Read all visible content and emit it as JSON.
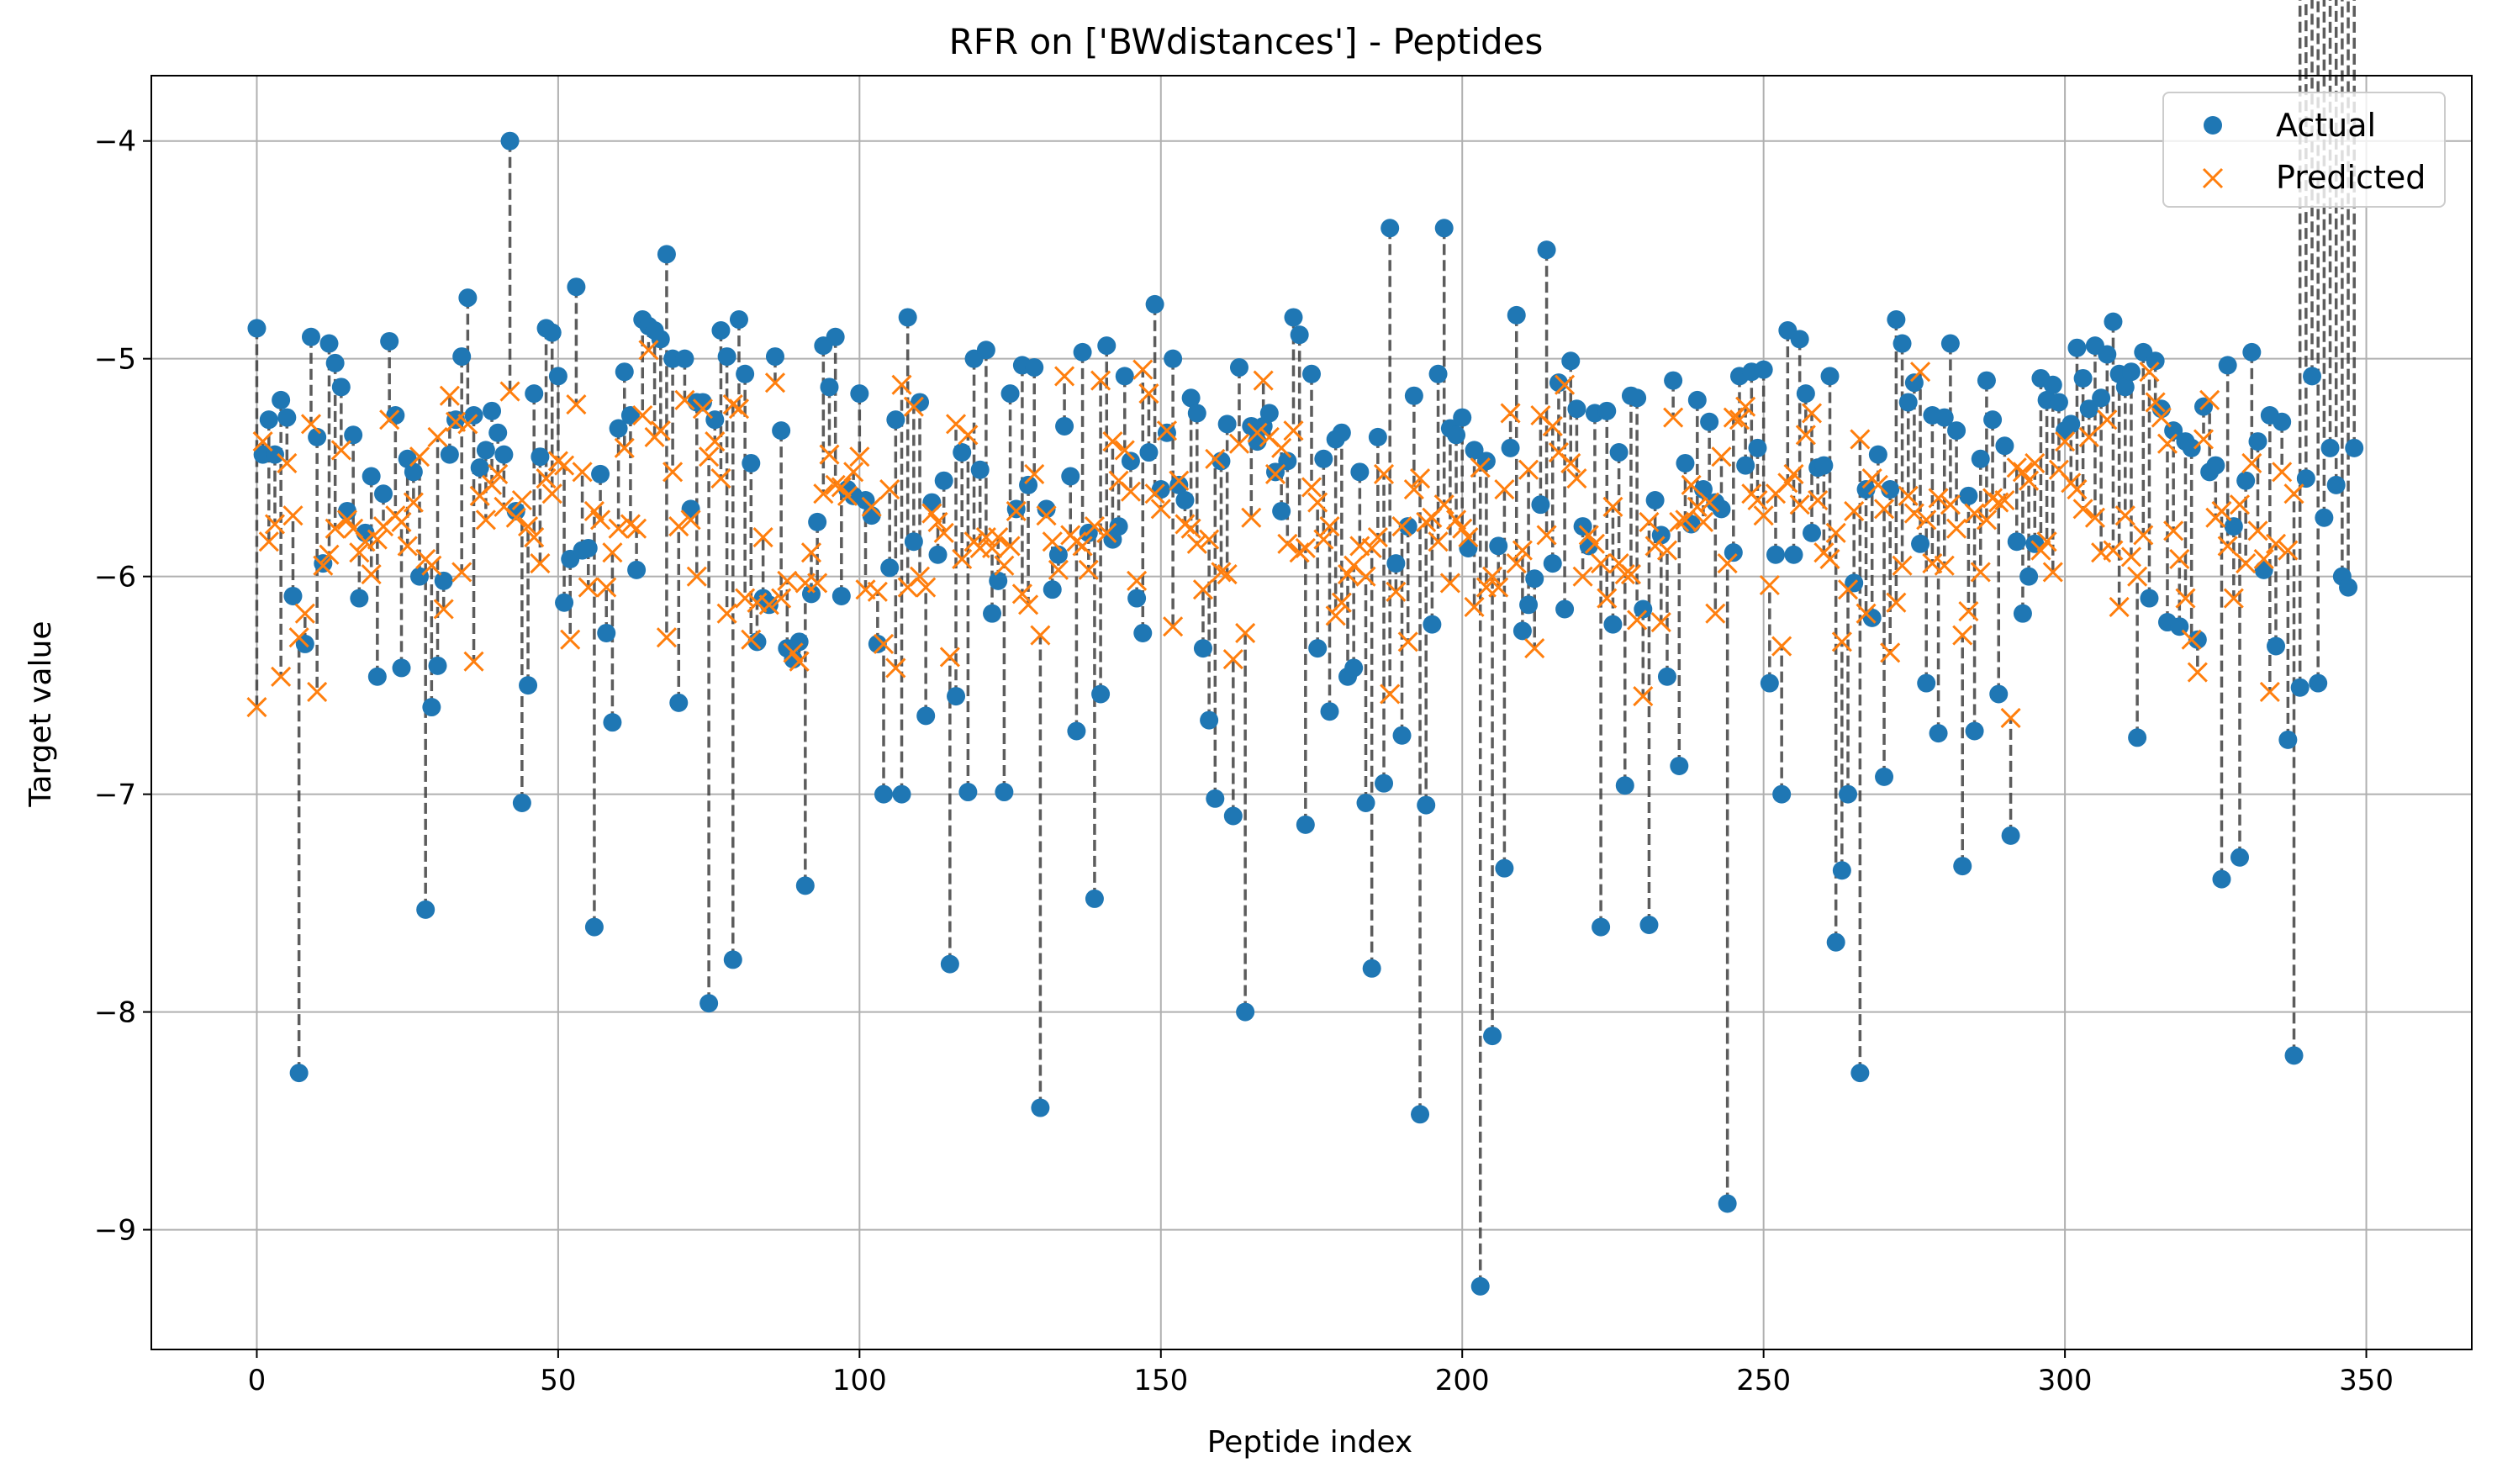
{
  "chart_data": {
    "type": "scatter",
    "title": "RFR on ['BWdistances'] - Peptides",
    "xlabel": "Peptide index",
    "ylabel": "Target value",
    "xlim": [
      -17.5,
      367.5
    ],
    "ylim": [
      -9.55,
      -3.7
    ],
    "xticks": [
      0,
      50,
      100,
      150,
      200,
      250,
      300,
      350
    ],
    "yticks": [
      -9,
      -8,
      -7,
      -6,
      -5,
      -4
    ],
    "grid": true,
    "legend_position": "top-right",
    "connectors": "dashed vertical lines joining actual and predicted",
    "colors": {
      "actual": "#1f77b4",
      "predicted": "#ff7f0e",
      "connector": "#404040",
      "grid": "#b0b0b0"
    },
    "series": [
      {
        "name": "Actual",
        "marker": "circle",
        "values": [
          -4.86,
          -5.44,
          -5.28,
          -5.44,
          -5.19,
          -5.27,
          -6.09,
          -8.28,
          -6.31,
          -4.9,
          -5.36,
          -5.94,
          -4.93,
          -5.02,
          -5.13,
          -5.7,
          -5.35,
          -6.1,
          -5.8,
          -5.54,
          -6.46,
          -5.62,
          -4.92,
          -5.26,
          -6.42,
          -5.46,
          -5.52,
          -6.0,
          -7.53,
          -6.6,
          -6.41,
          -6.02,
          -5.44,
          -5.28,
          -4.99,
          -4.72,
          -5.26,
          -5.5,
          -5.42,
          -5.24,
          -5.34,
          -5.44,
          -4.0,
          -5.7,
          -7.04,
          -6.5,
          -5.16,
          -5.45,
          -4.86,
          -4.88,
          -5.08,
          -6.12,
          -5.92,
          -4.67,
          -5.88,
          -5.87,
          -7.61,
          -5.53,
          -6.26,
          -6.67,
          -5.32,
          -5.06,
          -5.26,
          -5.97,
          -4.82,
          -4.85,
          -4.87,
          -4.91,
          -4.52,
          -5.0,
          -6.58,
          -5.0,
          -5.69,
          -5.2,
          -5.2,
          -7.96,
          -5.28,
          -4.87,
          -4.99,
          -7.76,
          -4.82,
          -5.07,
          -5.48,
          -6.3,
          -6.1,
          -6.13,
          -4.99,
          -5.33,
          -6.33,
          -6.38,
          -6.3,
          -7.42,
          -6.08,
          -5.75,
          -4.94,
          -5.13,
          -4.9,
          -6.09,
          -5.6,
          -5.63,
          -5.16,
          -5.65,
          -5.72,
          -6.31,
          -7.0,
          -5.96,
          -5.28,
          -7.0,
          -4.81,
          -5.84,
          -5.2,
          -6.64,
          -5.66,
          -5.9,
          -5.56,
          -7.78,
          -6.55,
          -5.43,
          -6.99,
          -5.0,
          -5.51,
          -4.96,
          -6.17,
          -6.02,
          -6.99,
          -5.16,
          -5.69,
          -5.03,
          -5.58,
          -5.04,
          -8.44,
          -5.69,
          -6.06,
          -5.9,
          -5.31,
          -5.54,
          -6.71,
          -4.97,
          -5.8,
          -7.48,
          -6.54,
          -4.94,
          -5.83,
          -5.77,
          -5.08,
          -5.47,
          -6.1,
          -6.26,
          -5.43,
          -4.75,
          -5.6,
          -5.34,
          -5.0,
          -5.58,
          -5.65,
          -5.18,
          -5.25,
          -6.33,
          -6.66,
          -7.02,
          -5.47,
          -5.3,
          -7.1,
          -5.04,
          -8.0,
          -5.31,
          -5.38,
          -5.31,
          -5.25,
          -5.52,
          -5.7,
          -5.47,
          -4.81,
          -4.89,
          -7.14,
          -5.07,
          -6.33,
          -5.46,
          -6.62,
          -5.37,
          -5.34,
          -6.46,
          -6.42,
          -5.52,
          -7.04,
          -7.8,
          -5.36,
          -6.95,
          -4.4,
          -5.94,
          -6.73,
          -5.77,
          -5.17,
          -8.47,
          -7.05,
          -6.22,
          -5.07,
          -4.4,
          -5.32,
          -5.35,
          -5.27,
          -5.87,
          -5.42,
          -9.26,
          -5.47,
          -8.11,
          -5.86,
          -7.34,
          -5.41,
          -4.8,
          -6.25,
          -6.13,
          -6.01,
          -5.67,
          -4.5,
          -5.94,
          -5.11,
          -6.15,
          -5.01,
          -5.23,
          -5.77,
          -5.86,
          -5.25,
          -7.61,
          -5.24,
          -6.22,
          -5.43,
          -6.96,
          -5.17,
          -5.18,
          -6.15,
          -7.6,
          -5.65,
          -5.81,
          -6.46,
          -5.1,
          -6.87,
          -5.48,
          -5.76,
          -5.19,
          -5.6,
          -5.29,
          -5.66,
          -5.69,
          -8.88,
          -5.89,
          -5.08,
          -5.49,
          -5.06,
          -5.41,
          -5.05,
          -6.49,
          -5.9,
          -7.0,
          -4.87,
          -5.9,
          -4.91,
          -5.16,
          -5.8,
          -5.5,
          -5.49,
          -5.08,
          -7.68,
          -7.35,
          -7.0,
          -6.03,
          -8.28,
          -5.6,
          -6.19,
          -5.44,
          -6.92,
          -5.6,
          -4.82,
          -4.93,
          -5.2,
          -5.11,
          -5.85,
          -6.49,
          -5.26,
          -6.72,
          -5.27,
          -4.93,
          -5.33,
          -7.33,
          -5.63,
          -6.71,
          -5.46,
          -5.1,
          -5.28,
          -6.54,
          -5.4,
          -7.19,
          -5.84,
          -6.17,
          -6.0,
          -5.85,
          -5.09,
          -5.19,
          -5.12,
          -5.2,
          -5.33,
          -5.3,
          -4.95,
          -5.09,
          -5.23,
          -4.94,
          -5.18,
          -4.98,
          -4.83,
          -5.07,
          -5.13,
          -5.06,
          -6.74,
          -4.97,
          -6.1,
          -5.01,
          -5.23,
          -6.21,
          -5.33,
          -6.23,
          -5.38,
          -5.41,
          -6.29,
          -5.22,
          -5.52,
          -5.49,
          -7.39,
          -5.03,
          -5.77,
          -7.29,
          -5.56,
          -4.97,
          -5.38,
          -5.97,
          -5.26,
          -6.32,
          -5.29,
          -6.75,
          -8.2,
          -6.51,
          -5.55,
          -5.08,
          -6.49,
          -5.73,
          -5.41,
          -5.58,
          -6.0,
          -6.05,
          -5.41
        ]
      },
      {
        "name": "Predicted",
        "marker": "x",
        "values": [
          -6.6,
          -5.38,
          -5.84,
          -5.76,
          -6.46,
          -5.48,
          -5.72,
          -6.28,
          -6.17,
          -5.3,
          -6.53,
          -5.95,
          -5.9,
          -5.78,
          -5.42,
          -5.74,
          -5.78,
          -5.89,
          -5.84,
          -5.99,
          -5.83,
          -5.77,
          -5.28,
          -5.72,
          -5.75,
          -5.86,
          -5.66,
          -5.45,
          -5.92,
          -5.95,
          -5.36,
          -6.15,
          -5.17,
          -5.29,
          -5.98,
          -5.3,
          -6.39,
          -5.63,
          -5.74,
          -5.58,
          -5.53,
          -5.68,
          -5.15,
          -5.73,
          -5.65,
          -5.77,
          -5.82,
          -5.94,
          -5.55,
          -5.62,
          -5.47,
          -5.49,
          -6.29,
          -5.21,
          -5.52,
          -6.05,
          -5.7,
          -5.74,
          -6.05,
          -5.89,
          -5.78,
          -5.41,
          -5.76,
          -5.78,
          -5.26,
          -4.96,
          -5.36,
          -5.33,
          -6.28,
          -5.52,
          -5.77,
          -5.19,
          -5.74,
          -6.0,
          -5.23,
          -5.45,
          -5.38,
          -5.55,
          -6.17,
          -5.21,
          -5.23,
          -6.1,
          -6.29,
          -6.12,
          -5.82,
          -6.13,
          -5.11,
          -6.1,
          -6.02,
          -6.35,
          -6.39,
          -6.03,
          -5.89,
          -6.03,
          -5.62,
          -5.44,
          -5.58,
          -5.59,
          -5.63,
          -5.52,
          -5.45,
          -6.06,
          -5.68,
          -6.07,
          -6.31,
          -5.6,
          -6.42,
          -5.12,
          -6.05,
          -5.22,
          -6.0,
          -6.05,
          -5.71,
          -5.75,
          -5.8,
          -6.37,
          -5.3,
          -5.92,
          -5.35,
          -5.84,
          -5.87,
          -5.82,
          -5.87,
          -5.82,
          -5.95,
          -5.86,
          -5.7,
          -6.08,
          -6.13,
          -5.53,
          -6.27,
          -5.72,
          -5.84,
          -5.97,
          -5.08,
          -5.81,
          -5.84,
          -5.86,
          -5.97,
          -5.77,
          -5.1,
          -5.8,
          -5.38,
          -5.56,
          -5.42,
          -5.61,
          -6.02,
          -5.05,
          -5.16,
          -5.62,
          -5.69,
          -5.33,
          -6.23,
          -5.56,
          -5.76,
          -5.78,
          -5.85,
          -6.06,
          -5.83,
          -5.46,
          -5.98,
          -5.99,
          -6.38,
          -5.39,
          -6.26,
          -5.73,
          -5.34,
          -5.1,
          -5.36,
          -5.53,
          -5.41,
          -5.85,
          -5.33,
          -5.89,
          -5.87,
          -5.59,
          -5.66,
          -5.83,
          -5.77,
          -6.18,
          -6.12,
          -5.99,
          -5.95,
          -5.86,
          -6.0,
          -5.87,
          -5.82,
          -5.53,
          -6.54,
          -6.07,
          -5.77,
          -6.3,
          -5.6,
          -5.55,
          -5.75,
          -5.73,
          -5.84,
          -5.67,
          -6.03,
          -5.74,
          -5.78,
          -5.82,
          -6.14,
          -5.5,
          -6.05,
          -6.0,
          -6.05,
          -5.6,
          -5.25,
          -5.94,
          -5.88,
          -5.51,
          -6.33,
          -5.26,
          -5.81,
          -5.31,
          -5.43,
          -5.12,
          -5.48,
          -5.55,
          -6.0,
          -5.81,
          -5.85,
          -5.94,
          -6.1,
          -5.68,
          -5.94,
          -5.99,
          -5.99,
          -6.2,
          -6.55,
          -5.75,
          -5.86,
          -6.21,
          -5.88,
          -5.27,
          -5.75,
          -5.74,
          -5.58,
          -5.68,
          -5.75,
          -5.66,
          -6.17,
          -5.45,
          -5.94,
          -5.27,
          -5.28,
          -5.22,
          -5.62,
          -5.65,
          -5.72,
          -6.04,
          -5.62,
          -6.32,
          -5.57,
          -5.53,
          -5.67,
          -5.35,
          -5.25,
          -5.65,
          -5.89,
          -5.92,
          -5.8,
          -6.3,
          -6.06,
          -5.7,
          -5.37,
          -6.17,
          -5.55,
          -5.58,
          -5.69,
          -6.35,
          -6.12,
          -5.95,
          -5.63,
          -5.71,
          -5.06,
          -5.74,
          -5.94,
          -5.64,
          -5.95,
          -5.67,
          -5.78,
          -6.27,
          -6.16,
          -5.71,
          -5.98,
          -5.74,
          -5.64,
          -5.66,
          -5.65,
          -6.65,
          -5.5,
          -5.52,
          -5.56,
          -5.48,
          -5.88,
          -5.84,
          -5.98,
          -5.51,
          -5.38,
          -5.57,
          -5.6,
          -5.69,
          -5.36,
          -5.73,
          -5.89,
          -5.28,
          -5.88,
          -6.14,
          -5.72,
          -5.91,
          -6.0,
          -5.81,
          -5.06,
          -5.2,
          -5.27,
          -5.39,
          -5.79,
          -5.92,
          -6.1,
          -6.29,
          -6.44,
          -5.37,
          -5.19,
          -5.73,
          -5.7,
          -5.86,
          -6.1,
          -5.67,
          -5.94,
          -5.48,
          -5.79,
          -5.92,
          -6.53,
          -5.85,
          -5.52,
          -5.88,
          -5.62
        ]
      }
    ]
  }
}
